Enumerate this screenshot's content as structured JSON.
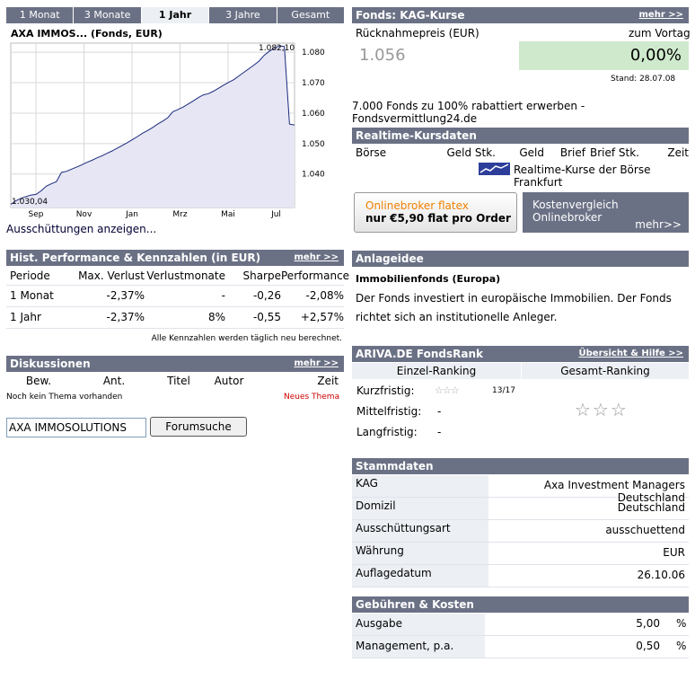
{
  "tabs": [
    "1 Monat",
    "3 Monate",
    "1 Jahr",
    "3 Jahre",
    "Gesamt"
  ],
  "active_tab": 2,
  "chart": {
    "title": "AXA IMMOS... (Fonds, EUR)",
    "label_max": "1.082,10",
    "label_min": "1.030,04",
    "link": "Ausschüttungen anzeigen..."
  },
  "chart_data": {
    "type": "line",
    "x_ticks": [
      "Sep",
      "Nov",
      "Jan",
      "Mrz",
      "Mai",
      "Jul"
    ],
    "y_ticks": [
      "1.080",
      "1.070",
      "1.060",
      "1.050",
      "1.040"
    ],
    "ylim": [
      1029,
      1083
    ],
    "series": [
      {
        "values": [
          1030.04,
          1031.2,
          1032.0,
          1032.6,
          1033.1,
          1033.3,
          1034.5,
          1036.0,
          1036.8,
          1037.5,
          1040.5,
          1040.9,
          1041.6,
          1042.3,
          1043.0,
          1043.8,
          1044.5,
          1045.3,
          1046.0,
          1046.8,
          1047.6,
          1048.5,
          1049.4,
          1050.3,
          1051.3,
          1052.3,
          1053.4,
          1054.3,
          1055.3,
          1056.4,
          1057.4,
          1058.5,
          1060.5,
          1061.2,
          1062.0,
          1063.0,
          1064.0,
          1065.1,
          1066.0,
          1066.4,
          1067.2,
          1068.2,
          1069.2,
          1070.1,
          1071.0,
          1072.2,
          1073.4,
          1074.6,
          1075.8,
          1077.1,
          1079.0,
          1080.3,
          1081.3,
          1082.1,
          1081.9,
          1056.4,
          1056.1
        ]
      }
    ]
  },
  "fonds": {
    "title": "Fonds: KAG-Kurse",
    "more": "mehr >>",
    "price_label": "Rücknahmepreis (EUR)",
    "prev_label": "zum Vortag",
    "price": "1.056",
    "change": "0,00%",
    "stand": "Stand: 28.07.08",
    "ad": "7.000 Fonds zu 100% rabattiert erwerben - Fondsvermittlung24.de"
  },
  "realtime": {
    "title": "Realtime-Kursdaten",
    "cols": [
      "Börse",
      "Geld Stk.",
      "Geld",
      "Brief",
      "Brief Stk.",
      "Zeit"
    ],
    "note": "Realtime-Kurse der Börse Frankfurt"
  },
  "banners": {
    "flatex_line1": "Onlinebroker flatex",
    "flatex_line2": "nur  €5,90 flat pro Order",
    "kosten_line1": "Kostenvergleich",
    "kosten_line2": "Onlinebroker",
    "kosten_more": "mehr>>"
  },
  "perf": {
    "title": "Hist. Performance & Kennzahlen (in EUR)",
    "more": "mehr >>",
    "cols": [
      "Periode",
      "Max. Verlust",
      "Verlustmonate",
      "Sharpe",
      "Performance"
    ],
    "rows": [
      [
        "1 Monat",
        "-2,37%",
        "-",
        "-0,26",
        "-2,08%"
      ],
      [
        "1 Jahr",
        "-2,37%",
        "8%",
        "-0,55",
        "+2,57%"
      ]
    ],
    "note": "Alle Kennzahlen werden täglich neu berechnet."
  },
  "disk": {
    "title": "Diskussionen",
    "more": "mehr >>",
    "cols": [
      "Bew.",
      "Ant.",
      "Titel",
      "Autor",
      "Zeit"
    ],
    "empty": "Noch kein Thema vorhanden",
    "new": "Neues Thema",
    "search_value": "AXA IMMOSOLUTIONS",
    "search_button": "Forumsuche"
  },
  "anlage": {
    "title": "Anlageidee",
    "subtitle": "Immobilienfonds (Europa)",
    "text": "Der Fonds investiert in europäische Immobilien. Der Fonds richtet sich an institutionelle Anleger."
  },
  "rank": {
    "title": "ARIVA.DE FondsRank",
    "more": "Übersicht & Hilfe >>",
    "col1": "Einzel-Ranking",
    "col2": "Gesamt-Ranking",
    "rows": [
      {
        "label": "Kurzfristig:",
        "value": "13/17"
      },
      {
        "label": "Mittelfristig:",
        "value": "-"
      },
      {
        "label": "Langfristig:",
        "value": "-"
      }
    ]
  },
  "stamm": {
    "title": "Stammdaten",
    "rows": [
      [
        "KAG",
        "Axa Investment Managers Deutschland"
      ],
      [
        "Domizil",
        "Deutschland"
      ],
      [
        "Ausschüttungsart",
        "ausschuettend"
      ],
      [
        "Währung",
        "EUR"
      ],
      [
        "Auflagedatum",
        "26.10.06"
      ]
    ]
  },
  "gebuehr": {
    "title": "Gebühren & Kosten",
    "rows": [
      [
        "Ausgabe",
        "5,00",
        "%"
      ],
      [
        "Management, p.a.",
        "0,50",
        "%"
      ]
    ]
  }
}
